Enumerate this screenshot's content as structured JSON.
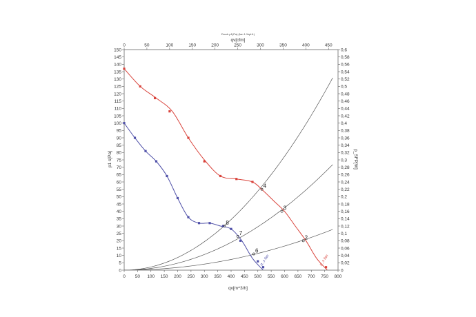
{
  "chart_data": {
    "type": "line",
    "title": "Druck p1(Pa) (fan 1:1kph1)",
    "xlabel": "qv[m^3/h]",
    "x2label": "qv[cfm]",
    "ylabel": "p1 s[Pa]",
    "y2label": "p_SFP[W]",
    "xlim": [
      0,
      800
    ],
    "x2lim": [
      0,
      470.9
    ],
    "ylim": [
      0,
      150
    ],
    "y2lim": [
      0,
      0.6
    ],
    "x_ticks": [
      0,
      50,
      100,
      150,
      200,
      250,
      300,
      350,
      400,
      450,
      500,
      550,
      600,
      650,
      700,
      750,
      800
    ],
    "x2_ticks": [
      0,
      50,
      100,
      150,
      200,
      250,
      300,
      350,
      400,
      450
    ],
    "y_ticks": [
      0,
      5,
      10,
      15,
      20,
      25,
      30,
      35,
      40,
      45,
      50,
      55,
      60,
      65,
      70,
      75,
      80,
      85,
      90,
      95,
      100,
      105,
      110,
      115,
      120,
      125,
      130,
      135,
      140,
      145,
      150
    ],
    "y2_ticks": [
      0,
      0.02,
      0.04,
      0.06,
      0.08,
      0.1,
      0.12,
      0.14,
      0.16,
      0.18,
      0.2,
      0.22,
      0.24,
      0.26,
      0.28,
      0.3,
      0.32,
      0.34,
      0.36,
      0.38,
      0.4,
      0.42,
      0.44,
      0.46,
      0.48,
      0.5,
      0.52,
      0.54,
      0.56,
      0.58,
      0.6
    ],
    "grid": false,
    "series": [
      {
        "color": "#d9443c",
        "x": [
          0,
          60,
          120,
          180,
          240,
          300,
          360,
          420,
          480,
          520,
          560,
          600,
          640,
          680,
          720,
          760
        ],
        "y": [
          137,
          125,
          117,
          108,
          90,
          75,
          64,
          62,
          60,
          54,
          47,
          40,
          30,
          20,
          8,
          0
        ],
        "markers": [
          {
            "x": 0,
            "y": 137
          },
          {
            "x": 60,
            "y": 125
          },
          {
            "x": 115,
            "y": 117
          },
          {
            "x": 170,
            "y": 108
          },
          {
            "x": 240,
            "y": 90
          },
          {
            "x": 300,
            "y": 74
          },
          {
            "x": 360,
            "y": 64
          },
          {
            "x": 420,
            "y": 62
          },
          {
            "x": 480,
            "y": 60
          },
          {
            "x": 755,
            "y": 2
          }
        ]
      },
      {
        "color": "#4f50a8",
        "x": [
          0,
          40,
          80,
          120,
          160,
          200,
          240,
          280,
          320,
          360,
          400,
          440,
          480,
          520
        ],
        "y": [
          100,
          90,
          81,
          74,
          64,
          49,
          36,
          32,
          32,
          30,
          28,
          20,
          8,
          0
        ],
        "markers": [
          {
            "x": 0,
            "y": 100
          },
          {
            "x": 40,
            "y": 90
          },
          {
            "x": 80,
            "y": 81
          },
          {
            "x": 120,
            "y": 74
          },
          {
            "x": 160,
            "y": 64
          },
          {
            "x": 200,
            "y": 49
          },
          {
            "x": 240,
            "y": 36
          },
          {
            "x": 280,
            "y": 32
          },
          {
            "x": 320,
            "y": 32
          },
          {
            "x": 370,
            "y": 30
          },
          {
            "x": 400,
            "y": 28
          },
          {
            "x": 435,
            "y": 20
          },
          {
            "x": 500,
            "y": 6
          },
          {
            "x": 520,
            "y": 2
          }
        ]
      }
    ],
    "system_curves": [
      {
        "k": 0.000215,
        "color": "#555555"
      },
      {
        "k": 0.000118,
        "color": "#555555"
      },
      {
        "k": 4.55e-05,
        "color": "#555555"
      }
    ],
    "operating_points": [
      {
        "label": "2",
        "x": 670,
        "y": 20
      },
      {
        "label": "3",
        "x": 590,
        "y": 40
      },
      {
        "label": "4",
        "x": 515,
        "y": 55
      },
      {
        "label": "6",
        "x": 485,
        "y": 11
      },
      {
        "label": "7",
        "x": 425,
        "y": 23
      },
      {
        "label": "8",
        "x": 375,
        "y": 30
      }
    ],
    "curve_labels": [
      {
        "text": "p_s fan",
        "x": 737,
        "y": 3,
        "color": "#d9443c"
      },
      {
        "text": "p_s fan",
        "x": 515,
        "y": 3,
        "color": "#4f50a8"
      }
    ]
  }
}
